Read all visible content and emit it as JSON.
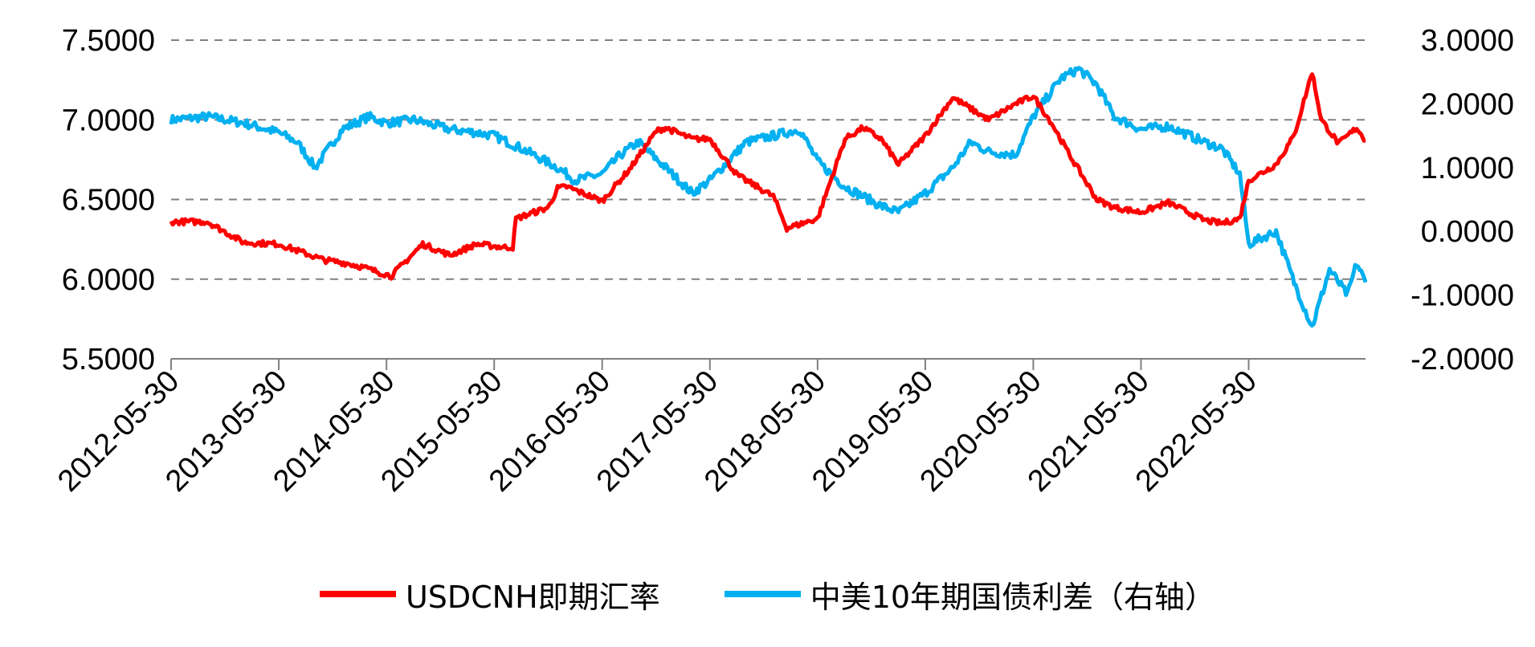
{
  "chart_data": {
    "type": "line",
    "title": "",
    "x_ticks": [
      "2012-05-30",
      "2013-05-30",
      "2014-05-30",
      "2015-05-30",
      "2016-05-30",
      "2017-05-30",
      "2018-05-30",
      "2019-05-30",
      "2020-05-30",
      "2021-05-30",
      "2022-05-30"
    ],
    "y_left": {
      "ylim": [
        5.5,
        7.5
      ],
      "ticks": [
        "5.5000",
        "6.0000",
        "6.5000",
        "7.0000",
        "7.5000"
      ]
    },
    "y_right": {
      "ylim": [
        -2.0,
        3.0
      ],
      "ticks": [
        "-2.0000",
        "-1.0000",
        "0.0000",
        "1.0000",
        "2.0000",
        "3.0000"
      ]
    },
    "grid": "horizontal dashed",
    "legend_position": "bottom",
    "x_range": [
      "2012-05-30",
      "2023-06-30"
    ],
    "series": [
      {
        "name": "USDCNH即期汇率",
        "axis": "left",
        "color": "#FF0000",
        "x": [
          "2012-05-30",
          "2012-09-30",
          "2013-01-31",
          "2013-05-30",
          "2013-10-31",
          "2014-01-15",
          "2014-03-01",
          "2014-06-15",
          "2014-09-30",
          "2014-12-31",
          "2015-03-31",
          "2015-06-30",
          "2015-08-01",
          "2015-08-12",
          "2015-11-30",
          "2015-12-31",
          "2016-01-31",
          "2016-05-30",
          "2016-08-31",
          "2016-11-30",
          "2016-12-31",
          "2017-03-31",
          "2017-05-30",
          "2017-09-01",
          "2017-12-31",
          "2018-02-15",
          "2018-05-30",
          "2018-08-31",
          "2018-10-31",
          "2018-12-31",
          "2019-02-28",
          "2019-05-30",
          "2019-08-31",
          "2019-12-31",
          "2020-03-31",
          "2020-05-30",
          "2020-07-31",
          "2020-09-30",
          "2020-12-31",
          "2021-02-28",
          "2021-05-30",
          "2021-08-31",
          "2021-12-31",
          "2022-02-28",
          "2022-04-30",
          "2022-05-30",
          "2022-08-31",
          "2022-10-31",
          "2022-12-31",
          "2023-01-31",
          "2023-03-31",
          "2023-05-31",
          "2023-06-30"
        ],
        "values": [
          6.36,
          6.36,
          6.23,
          6.22,
          6.12,
          6.1,
          6.08,
          6.02,
          6.22,
          6.15,
          6.22,
          6.2,
          6.2,
          6.38,
          6.45,
          6.57,
          6.58,
          6.49,
          6.69,
          6.93,
          6.95,
          6.88,
          6.88,
          6.65,
          6.52,
          6.32,
          6.38,
          6.88,
          6.95,
          6.88,
          6.72,
          6.9,
          7.14,
          7.0,
          7.1,
          7.15,
          6.98,
          6.78,
          6.5,
          6.45,
          6.42,
          6.48,
          6.37,
          6.35,
          6.38,
          6.62,
          6.72,
          6.9,
          7.3,
          7.0,
          6.85,
          6.95,
          6.87
        ]
      },
      {
        "name": "中美10年期国债利差（右轴）",
        "axis": "right",
        "color": "#00B0F0",
        "x": [
          "2012-05-30",
          "2012-09-30",
          "2013-01-31",
          "2013-05-30",
          "2013-07-31",
          "2013-09-30",
          "2013-12-31",
          "2014-03-31",
          "2014-05-30",
          "2014-08-31",
          "2014-12-31",
          "2015-03-31",
          "2015-05-30",
          "2015-08-31",
          "2015-12-31",
          "2016-02-28",
          "2016-05-30",
          "2016-07-31",
          "2016-09-30",
          "2016-12-31",
          "2017-03-31",
          "2017-05-30",
          "2017-09-30",
          "2017-12-31",
          "2018-03-31",
          "2018-05-30",
          "2018-08-31",
          "2018-10-31",
          "2018-12-31",
          "2019-02-28",
          "2019-05-30",
          "2019-08-31",
          "2019-10-31",
          "2019-12-31",
          "2020-03-31",
          "2020-05-30",
          "2020-08-31",
          "2020-10-31",
          "2020-12-31",
          "2021-02-28",
          "2021-05-30",
          "2021-08-31",
          "2021-12-31",
          "2022-02-28",
          "2022-04-30",
          "2022-05-30",
          "2022-08-31",
          "2022-10-31",
          "2022-12-31",
          "2023-02-28",
          "2023-04-30",
          "2023-05-31",
          "2023-06-30"
        ],
        "values": [
          1.75,
          1.8,
          1.7,
          1.55,
          1.4,
          1.0,
          1.6,
          1.8,
          1.7,
          1.75,
          1.6,
          1.55,
          1.5,
          1.3,
          1.0,
          0.8,
          0.9,
          1.2,
          1.4,
          1.0,
          0.6,
          0.8,
          1.4,
          1.5,
          1.6,
          1.1,
          0.7,
          0.55,
          0.4,
          0.3,
          0.6,
          1.0,
          1.4,
          1.25,
          1.2,
          1.8,
          2.4,
          2.55,
          2.3,
          1.8,
          1.6,
          1.65,
          1.4,
          1.3,
          0.9,
          -0.2,
          0.0,
          -0.8,
          -1.5,
          -0.6,
          -1.0,
          -0.5,
          -0.8
        ]
      }
    ]
  }
}
